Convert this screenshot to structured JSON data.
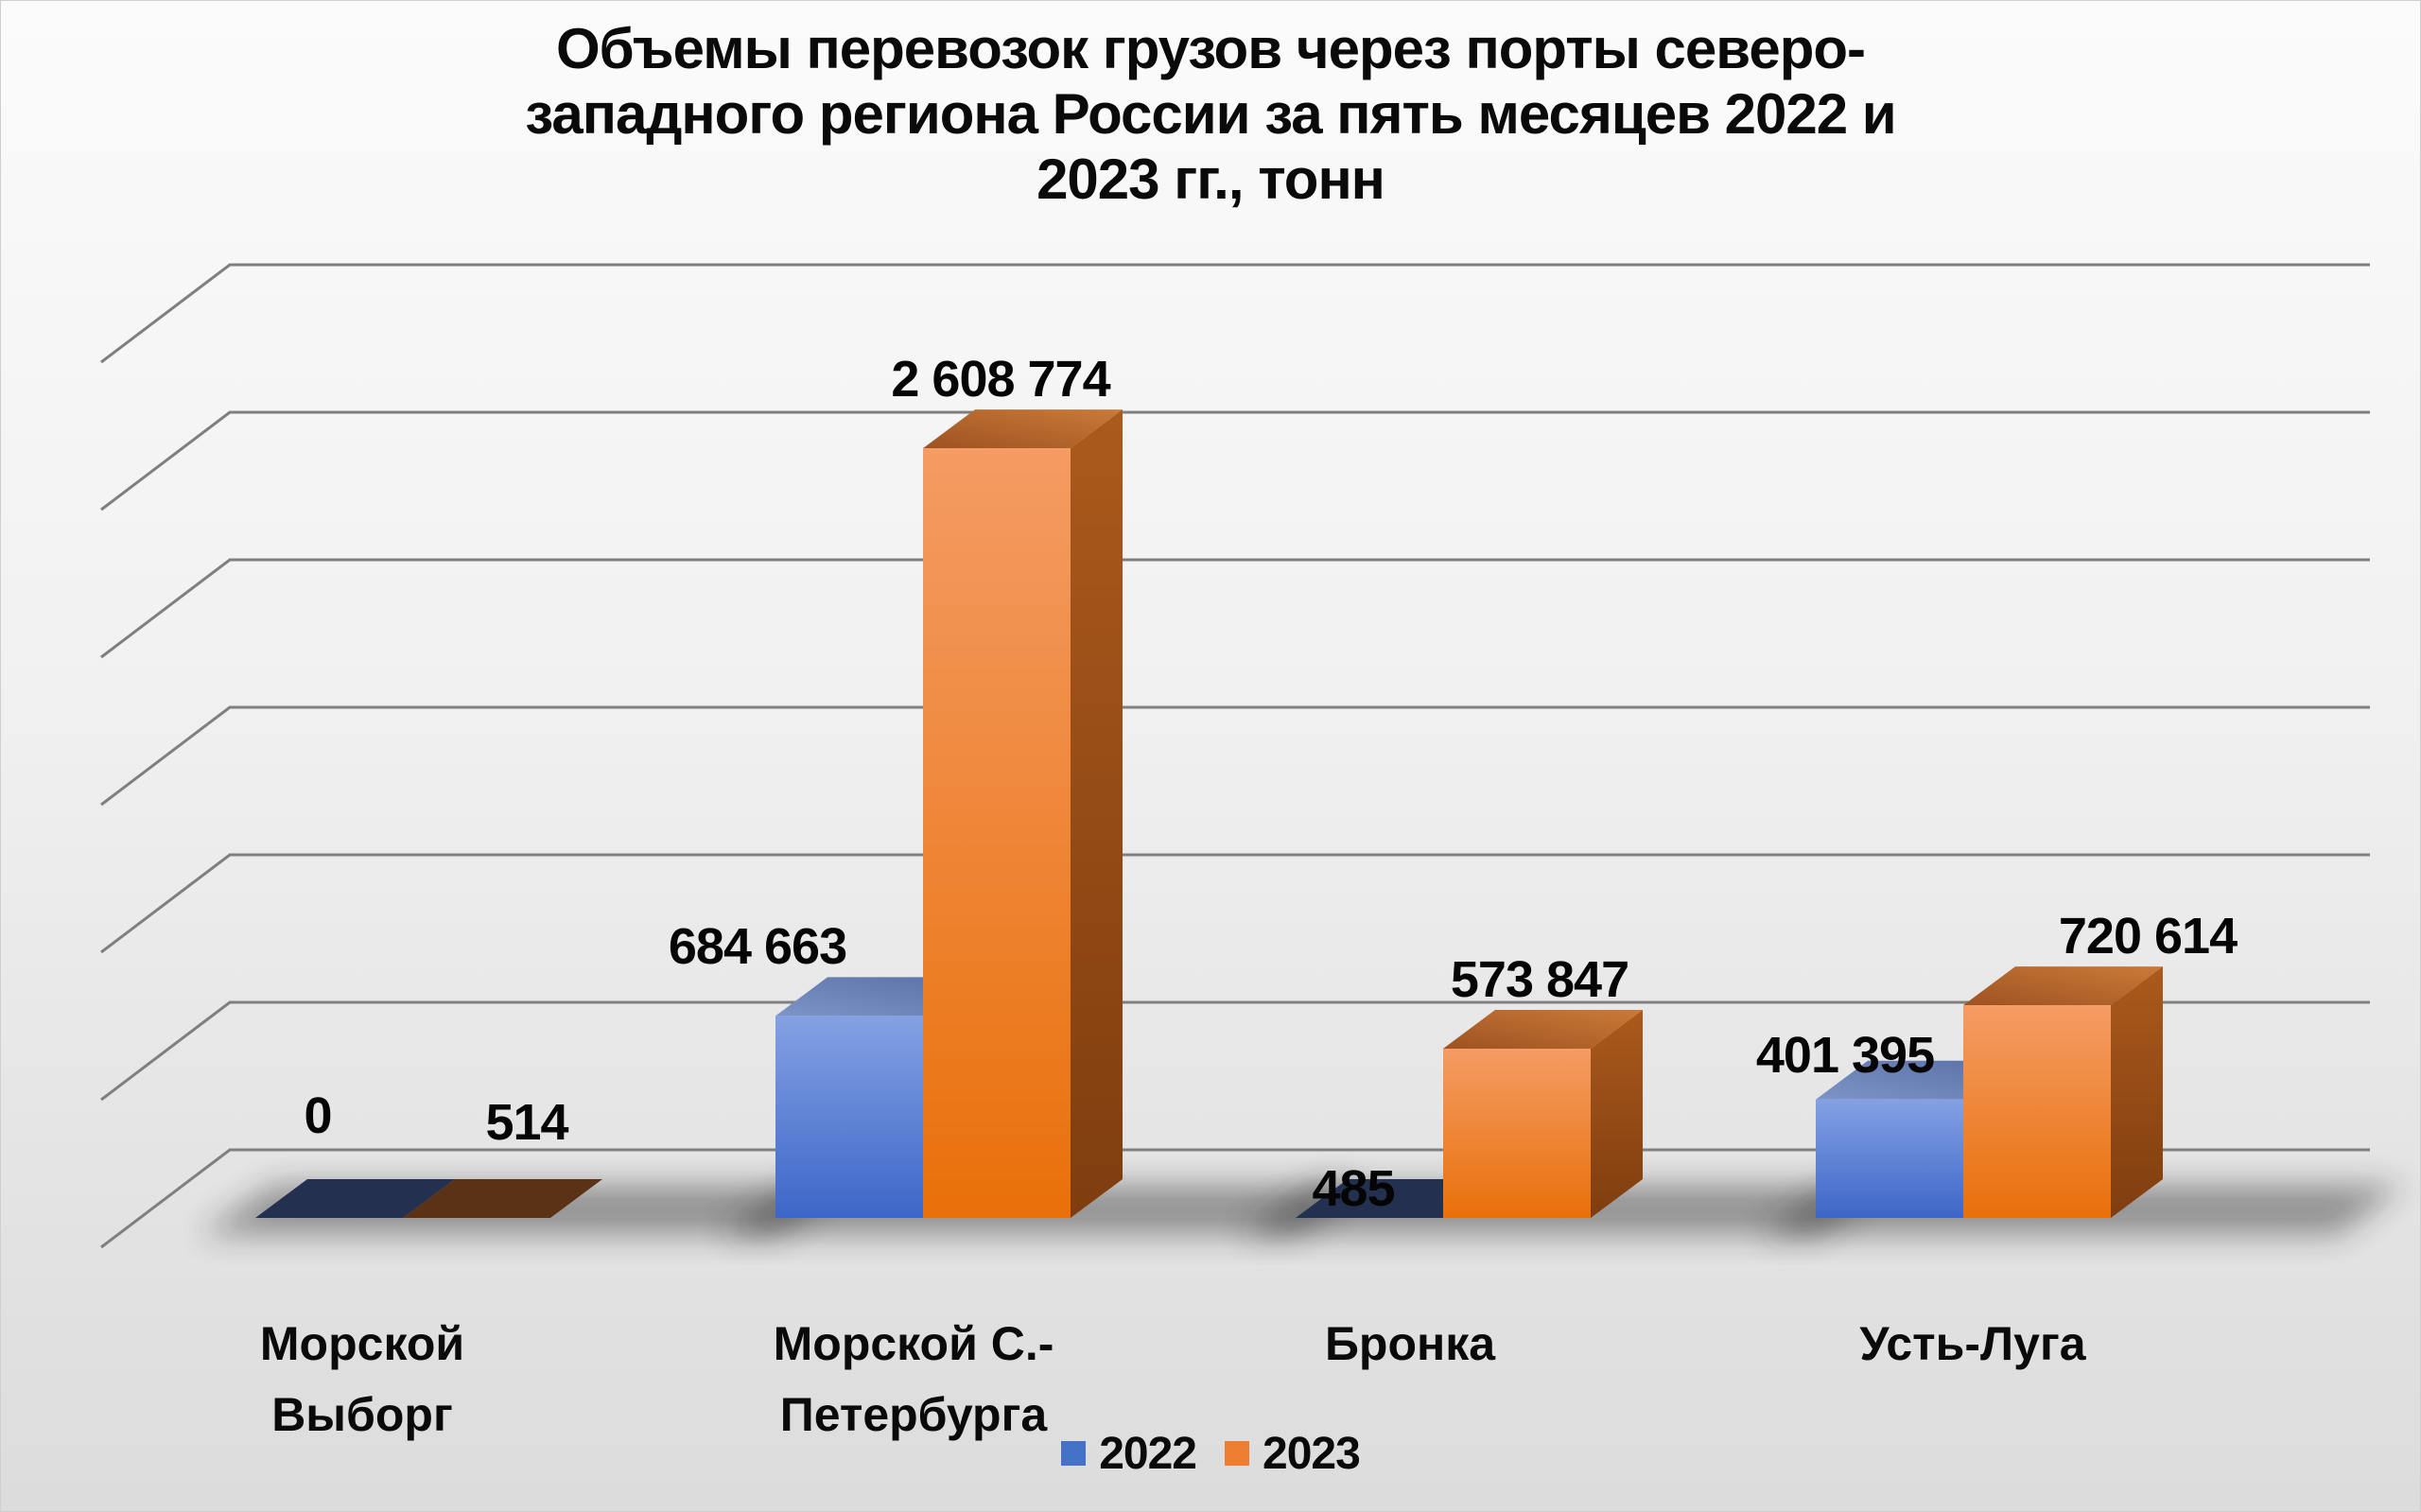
{
  "title": "Объемы перевозок грузов через порты северо-западного региона России за пять месяцев 2022 и 2023 гг., тонн",
  "title_lines": [
    "Объемы перевозок грузов через порты северо-",
    "западного региона России за пять месяцев 2022 и",
    "2023 гг., тонн"
  ],
  "legend": [
    {
      "label": "2022",
      "color": "#4472C4"
    },
    {
      "label": "2023",
      "color": "#ED7D31"
    }
  ],
  "colors": {
    "series_2022": "#4472C4",
    "series_2023": "#ED7D31",
    "gridline": "#7f7f7f",
    "background_top": "#fafafa",
    "background_bottom": "#dcdcdc",
    "label_text": "#050505",
    "flat_base_2022": "#243050",
    "flat_base_2023": "#5b3216"
  },
  "chart_data": {
    "type": "bar",
    "projection": "3d",
    "title": "Объемы перевозок грузов через порты северо-западного региона России за пять месяцев 2022 и 2023 гг., тонн",
    "categories": [
      "Морской Выборг",
      "Морской С.-Петербурга",
      "Бронка",
      "Усть-Луга"
    ],
    "categories_display": [
      [
        "Морской",
        "Выборг"
      ],
      [
        "Морской С.-",
        "Петербурга"
      ],
      [
        "Бронка"
      ],
      [
        "Усть-Луга"
      ]
    ],
    "series": [
      {
        "name": "2022",
        "color": "#4472C4",
        "values": [
          0,
          684663,
          485,
          401395
        ],
        "labels": [
          "0",
          "684 663",
          "485",
          "401 395"
        ]
      },
      {
        "name": "2023",
        "color": "#ED7D31",
        "values": [
          514,
          2608774,
          573847,
          720614
        ],
        "labels": [
          "514",
          "2 608 774",
          "573 847",
          "720 614"
        ]
      }
    ],
    "xlabel": "",
    "ylabel": "",
    "ylim": [
      0,
      3000000
    ],
    "gridline_interval": 500000,
    "grid": true,
    "value_axis_labels_visible": false,
    "legend_position": "bottom"
  }
}
